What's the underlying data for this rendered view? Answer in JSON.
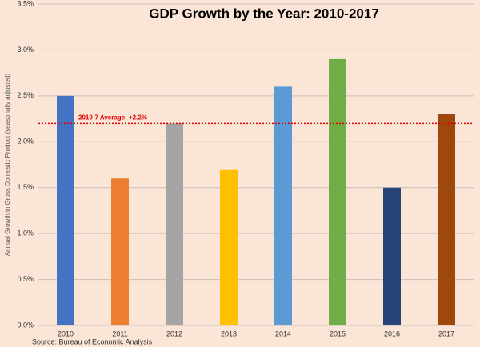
{
  "chart_data": {
    "type": "bar",
    "title": "GDP Growth by the Year: 2010-2017",
    "y_label": "Annual Growth in Gross Domestic Product (seasonally adjusted)",
    "source": "Source: Bureau of Economic Analysis",
    "categories": [
      "2010",
      "2011",
      "2012",
      "2013",
      "2014",
      "2015",
      "2016",
      "2017"
    ],
    "values": [
      2.5,
      1.6,
      2.2,
      1.7,
      2.6,
      2.9,
      1.5,
      2.3
    ],
    "colors": [
      "#4472c4",
      "#ed7d31",
      "#a5a5a5",
      "#ffc000",
      "#5b9bd5",
      "#70ad47",
      "#264478",
      "#9e480e"
    ],
    "ylim": [
      0,
      3.5
    ],
    "yticks": [
      {
        "value": 0,
        "label": "0.0%"
      },
      {
        "value": 0.5,
        "label": "0.5%"
      },
      {
        "value": 1,
        "label": "1.0%"
      },
      {
        "value": 1.5,
        "label": "1.5%"
      },
      {
        "value": 2,
        "label": "2.0%"
      },
      {
        "value": 2.5,
        "label": "2.5%"
      },
      {
        "value": 3,
        "label": "3.0%"
      },
      {
        "value": 3.5,
        "label": "3.5%"
      }
    ],
    "grid": true,
    "reference_line": {
      "value": 2.2,
      "label": "2010-7 Average: +2.2%",
      "color": "#e00000"
    }
  }
}
